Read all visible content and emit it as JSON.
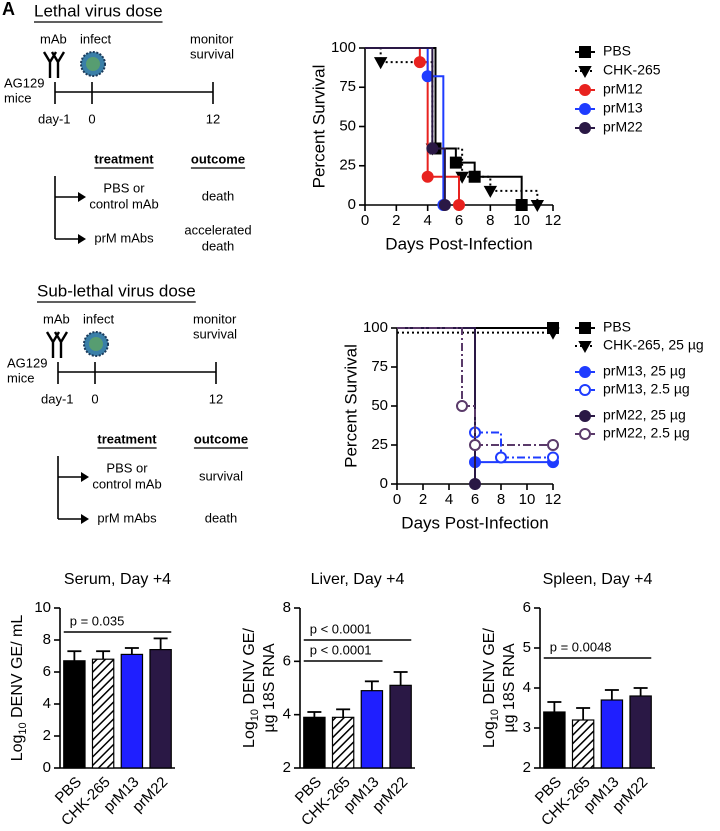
{
  "panel_labels": [
    "A"
  ],
  "schematics": [
    {
      "title": "Lethal virus dose",
      "antibody": "mAb",
      "infect": "infect",
      "monitor": [
        "monitor",
        "survival"
      ],
      "mouse": [
        "AG129",
        "mice"
      ],
      "timepoints": [
        "day-1",
        "0",
        "12"
      ],
      "treatment_header": "treatment",
      "outcome_header": "outcome",
      "rows": [
        {
          "treatment": [
            "PBS or",
            "control mAb"
          ],
          "outcome": [
            "death"
          ]
        },
        {
          "treatment": [
            "prM mAbs"
          ],
          "outcome": [
            "accelerated",
            "death"
          ]
        }
      ]
    },
    {
      "title": "Sub-lethal virus dose",
      "antibody": "mAb",
      "infect": "infect",
      "monitor": [
        "monitor",
        "survival"
      ],
      "mouse": [
        "AG129",
        "mice"
      ],
      "timepoints": [
        "day-1",
        "0",
        "12"
      ],
      "treatment_header": "treatment",
      "outcome_header": "outcome",
      "rows": [
        {
          "treatment": [
            "PBS or",
            "control mAb"
          ],
          "outcome": [
            "survival"
          ]
        },
        {
          "treatment": [
            "prM mAbs"
          ],
          "outcome": [
            "death"
          ]
        }
      ]
    }
  ],
  "chart_data": [
    {
      "type": "survival",
      "ylabel": "Percent Survival",
      "xlabel": "Days Post-Infection",
      "xlim": [
        0,
        12
      ],
      "xticks": [
        0,
        2,
        4,
        6,
        8,
        10,
        12
      ],
      "ylim": [
        0,
        100
      ],
      "yticks": [
        0,
        25,
        50,
        75,
        100
      ],
      "series": [
        {
          "name": "PBS",
          "color": "#000000",
          "marker": "square",
          "dash": "solid",
          "open": false,
          "x": [
            0,
            4.5,
            5.8,
            7,
            10
          ],
          "values": [
            100,
            36,
            27,
            18,
            0
          ]
        },
        {
          "name": "CHK-265",
          "color": "#000000",
          "marker": "triangle-down",
          "dash": "dotted",
          "open": false,
          "x": [
            0,
            1,
            4.3,
            6.2,
            8,
            11
          ],
          "values": [
            100,
            91,
            36,
            18,
            9,
            0
          ]
        },
        {
          "name": "prM12",
          "color": "#e8221f",
          "marker": "circle",
          "dash": "solid",
          "open": false,
          "x": [
            0,
            3.5,
            4,
            6
          ],
          "values": [
            100,
            91,
            18,
            0
          ]
        },
        {
          "name": "prM13",
          "color": "#1f3cff",
          "marker": "circle",
          "dash": "solid",
          "open": false,
          "x": [
            0,
            4,
            5
          ],
          "values": [
            100,
            82,
            0
          ]
        },
        {
          "name": "prM22",
          "color": "#2a1845",
          "marker": "circle",
          "dash": "solid",
          "open": false,
          "x": [
            0,
            4.3,
            5.1
          ],
          "values": [
            100,
            36,
            0
          ]
        }
      ]
    },
    {
      "type": "survival",
      "ylabel": "Percent Survival",
      "xlabel": "Days Post-Infection",
      "xlim": [
        0,
        12
      ],
      "xticks": [
        0,
        2,
        4,
        6,
        8,
        10,
        12
      ],
      "ylim": [
        0,
        100
      ],
      "yticks": [
        0,
        25,
        50,
        75,
        100
      ],
      "series": [
        {
          "name": "PBS",
          "color": "#000000",
          "marker": "square",
          "dash": "solid",
          "open": false,
          "x": [
            0,
            12
          ],
          "values": [
            100,
            100
          ]
        },
        {
          "name": "CHK-265, 25 µg",
          "color": "#000000",
          "marker": "triangle-down",
          "dash": "dotted",
          "open": false,
          "x": [
            0,
            12
          ],
          "values": [
            97,
            97
          ]
        },
        {
          "name": "prM13, 25 µg",
          "color": "#1f3cff",
          "marker": "circle",
          "dash": "solid",
          "open": false,
          "x": [
            0,
            6,
            12
          ],
          "values": [
            100,
            14,
            14
          ]
        },
        {
          "name": "prM13, 2.5 µg",
          "color": "#1f3cff",
          "marker": "circle",
          "dash": "dash-dot",
          "open": true,
          "x": [
            0,
            6,
            8,
            12
          ],
          "values": [
            100,
            33,
            17,
            17
          ]
        },
        {
          "name": "prM22, 25 µg",
          "color": "#2a1845",
          "marker": "circle",
          "dash": "solid",
          "open": false,
          "x": [
            0,
            6
          ],
          "values": [
            100,
            0
          ]
        },
        {
          "name": "prM22, 2.5 µg",
          "color": "#5a3a6a",
          "marker": "circle",
          "dash": "dash-dot",
          "open": true,
          "x": [
            0,
            5,
            6,
            12
          ],
          "values": [
            100,
            50,
            25,
            25
          ]
        }
      ]
    },
    {
      "type": "bar",
      "title": "Serum, Day +4",
      "ylabel": {
        "main": "Log",
        "sub": "10",
        "rest": " DENV GE/ mL"
      },
      "categories": [
        "PBS",
        "CHK-265",
        "prM13",
        "prM22"
      ],
      "values": [
        6.7,
        6.8,
        7.1,
        7.4
      ],
      "errors": [
        0.6,
        0.5,
        0.4,
        0.7
      ],
      "colors": [
        "#000000",
        "#000000",
        "#1f1fff",
        "#2a1845"
      ],
      "hatched": [
        "CHK-265"
      ],
      "ylim": [
        0,
        10
      ],
      "yticks": [
        0,
        2,
        4,
        6,
        8,
        10
      ],
      "annotations": [
        {
          "text": "p = 0.035",
          "from": "PBS",
          "to": "prM22"
        }
      ]
    },
    {
      "type": "bar",
      "title": "Liver, Day +4",
      "ylabel": {
        "main": "Log",
        "sub": "10",
        "rest": " DENV GE/",
        "line2": "µg 18S RNA"
      },
      "categories": [
        "PBS",
        "CHK-265",
        "prM13",
        "prM22"
      ],
      "values": [
        3.9,
        3.9,
        4.9,
        5.1
      ],
      "errors": [
        0.2,
        0.3,
        0.35,
        0.5
      ],
      "colors": [
        "#000000",
        "#000000",
        "#1f1fff",
        "#2a1845"
      ],
      "hatched": [
        "CHK-265"
      ],
      "ylim": [
        2,
        8
      ],
      "yticks": [
        2,
        4,
        6,
        8
      ],
      "annotations": [
        {
          "text": "p < 0.0001",
          "from": "PBS",
          "to": "prM13"
        },
        {
          "text": "p < 0.0001",
          "from": "PBS",
          "to": "prM22"
        }
      ]
    },
    {
      "type": "bar",
      "title": "Spleen, Day +4",
      "ylabel": {
        "main": "Log",
        "sub": "10",
        "rest": " DENV GE/",
        "line2": "µg 18S RNA"
      },
      "categories": [
        "PBS",
        "CHK-265",
        "prM13",
        "prM22"
      ],
      "values": [
        3.4,
        3.2,
        3.7,
        3.8
      ],
      "errors": [
        0.25,
        0.3,
        0.25,
        0.2
      ],
      "colors": [
        "#000000",
        "#000000",
        "#1f1fff",
        "#2a1845"
      ],
      "hatched": [
        "CHK-265"
      ],
      "ylim": [
        2,
        6
      ],
      "yticks": [
        2,
        3,
        4,
        5,
        6
      ],
      "annotations": [
        {
          "text": "p = 0.0048",
          "from": "PBS",
          "to": "prM22"
        }
      ]
    }
  ]
}
